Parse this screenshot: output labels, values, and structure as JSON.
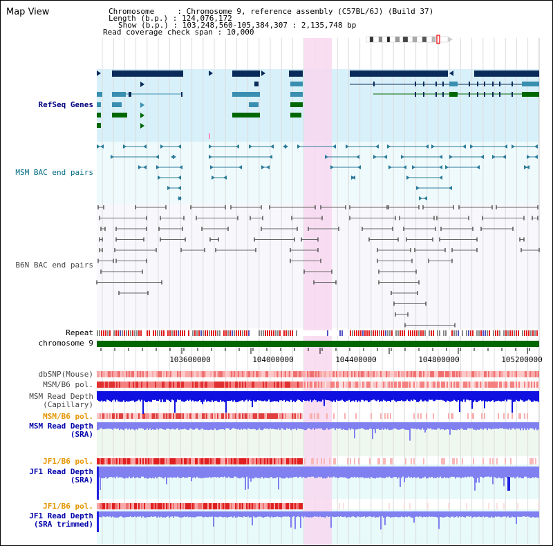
{
  "title": "Map View",
  "info": {
    "line1": "Chromosome     : Chromosome 9, reference assembly (C57BL/6J) (Build 37)",
    "line2": "Length (b.p.) : 124,076,172",
    "line3": "Show (b.p.) : 103,248,560-105,384,307 : 2,135,748 bp",
    "line4": "Read coverage check span : 10,000"
  },
  "tracks": {
    "refseq": "RefSeq Genes",
    "msm_bac": "MSM BAC end pairs",
    "b6n_bac": "B6N BAC end pairs",
    "repeat": "Repeat",
    "chromosome": "chromosome 9",
    "dbsnp": "dbSNP(Mouse)",
    "msm_pol1": "MSM/B6 pol.",
    "msm_depth_cap": "MSM Read Depth\n(Capillary)",
    "msm_pol2": "MSM/B6 pol.",
    "msm_depth_sra": "MSM Read Depth\n(SRA)",
    "jf1_pol1": "JF1/B6 pol.",
    "jf1_depth_sra": "JF1 Read Depth\n(SRA)",
    "jf1_pol2": "JF1/B6 pol.",
    "jf1_depth_trim": "JF1 Read Depth\n(SRA trimmed)"
  },
  "axis": {
    "ticks": [
      "103600000",
      "104000000",
      "104400000",
      "104800000",
      "105200000"
    ]
  },
  "colors": {
    "refseq_bg": "#d8f0fa",
    "bac_bg": "#eefafb",
    "highlight": "#f8d8f0",
    "navy": "#0a2a5a",
    "teal_gene": "#3a8fb0",
    "green_gene": "#006600",
    "chromosome": "#006600",
    "depth_blue": "#1010e0",
    "depth_light": "#8080f0"
  }
}
